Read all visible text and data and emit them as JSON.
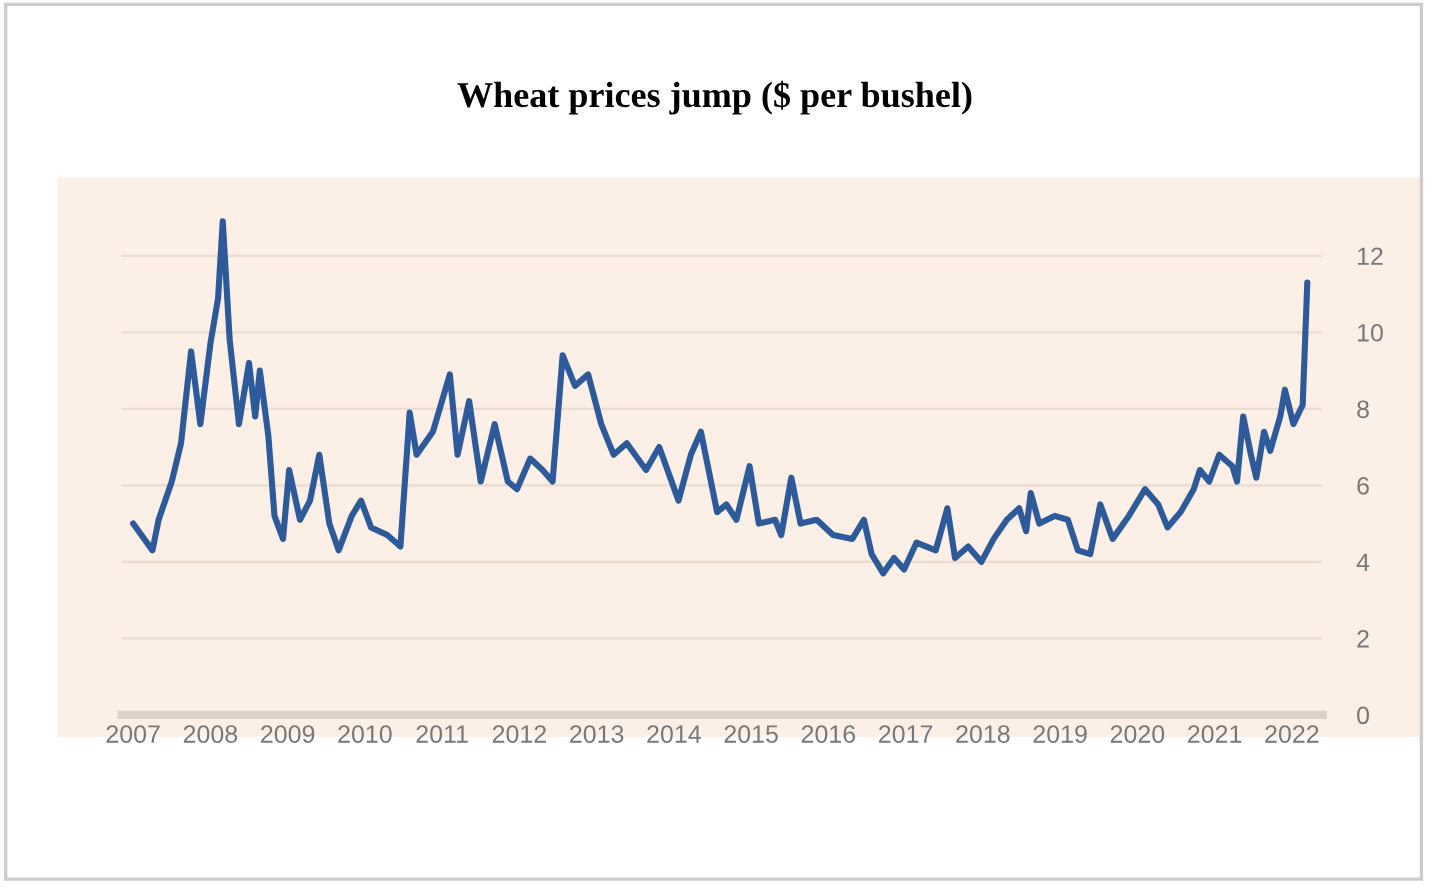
{
  "chart_data": {
    "type": "line",
    "title": "Wheat prices jump ($ per bushel)",
    "series": [
      {
        "color": "#2b5b9c",
        "x": [
          2007.0,
          2007.25,
          2007.33,
          2007.5,
          2007.62,
          2007.75,
          2007.87,
          2008.0,
          2008.1,
          2008.16,
          2008.25,
          2008.37,
          2008.5,
          2008.58,
          2008.64,
          2008.75,
          2008.83,
          2008.94,
          2009.02,
          2009.16,
          2009.29,
          2009.41,
          2009.54,
          2009.66,
          2009.83,
          2009.95,
          2010.08,
          2010.29,
          2010.46,
          2010.58,
          2010.67,
          2010.88,
          2011.1,
          2011.2,
          2011.35,
          2011.5,
          2011.68,
          2011.85,
          2011.97,
          2012.14,
          2012.3,
          2012.43,
          2012.47,
          2012.56,
          2012.72,
          2012.89,
          2013.06,
          2013.22,
          2013.39,
          2013.64,
          2013.81,
          2014.06,
          2014.22,
          2014.35,
          2014.56,
          2014.68,
          2014.81,
          2014.98,
          2015.1,
          2015.31,
          2015.39,
          2015.52,
          2015.64,
          2015.85,
          2016.06,
          2016.31,
          2016.46,
          2016.56,
          2016.71,
          2016.85,
          2016.98,
          2017.14,
          2017.39,
          2017.54,
          2017.64,
          2017.81,
          2017.98,
          2018.14,
          2018.31,
          2018.47,
          2018.56,
          2018.62,
          2018.73,
          2018.93,
          2019.1,
          2019.23,
          2019.39,
          2019.52,
          2019.68,
          2019.89,
          2020.1,
          2020.27,
          2020.39,
          2020.56,
          2020.73,
          2020.81,
          2020.93,
          2021.06,
          2021.23,
          2021.29,
          2021.37,
          2021.47,
          2021.54,
          2021.64,
          2021.72,
          2021.85,
          2021.91,
          2022.02,
          2022.14,
          2022.2
        ],
        "values": [
          5.0,
          4.3,
          5.1,
          6.1,
          7.1,
          9.5,
          7.6,
          9.7,
          10.9,
          12.9,
          9.8,
          7.6,
          9.2,
          7.8,
          9.0,
          7.3,
          5.2,
          4.6,
          6.4,
          5.1,
          5.6,
          6.8,
          5.0,
          4.3,
          5.2,
          5.6,
          4.9,
          4.7,
          4.4,
          7.9,
          6.8,
          7.4,
          8.9,
          6.8,
          8.2,
          6.1,
          7.6,
          6.1,
          5.9,
          6.7,
          6.4,
          6.1,
          7.1,
          9.4,
          8.6,
          8.9,
          7.6,
          6.8,
          7.1,
          6.4,
          7.0,
          5.6,
          6.8,
          7.4,
          5.3,
          5.5,
          5.1,
          6.5,
          5.0,
          5.1,
          4.7,
          6.2,
          5.0,
          5.1,
          4.7,
          4.6,
          5.1,
          4.2,
          3.7,
          4.1,
          3.8,
          4.5,
          4.3,
          5.4,
          4.1,
          4.4,
          4.0,
          4.6,
          5.1,
          5.4,
          4.8,
          5.8,
          5.0,
          5.2,
          5.1,
          4.3,
          4.2,
          5.5,
          4.6,
          5.2,
          5.9,
          5.5,
          4.9,
          5.3,
          5.9,
          6.4,
          6.1,
          6.8,
          6.5,
          6.1,
          7.8,
          6.8,
          6.2,
          7.4,
          6.9,
          7.8,
          8.5,
          7.6,
          8.1,
          11.3
        ]
      }
    ],
    "xlim": [
      2006.85,
      2022.4
    ],
    "xticks": [
      2007,
      2008,
      2009,
      2010,
      2011,
      2012,
      2013,
      2014,
      2015,
      2016,
      2017,
      2018,
      2019,
      2020,
      2021,
      2022
    ],
    "ylim": [
      0,
      13
    ],
    "yticks": [
      0,
      2,
      4,
      6,
      8,
      10,
      12
    ],
    "grid": "y"
  }
}
